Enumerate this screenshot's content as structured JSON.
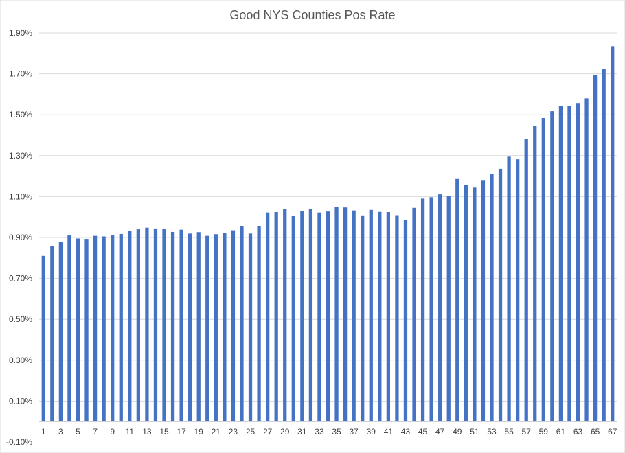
{
  "chart_data": {
    "type": "bar",
    "title": "Good NYS Counties Pos Rate",
    "xlabel": "",
    "ylabel": "",
    "ylim": [
      -0.1,
      1.9
    ],
    "y_ticks": [
      -0.1,
      0.1,
      0.3,
      0.5,
      0.7,
      0.9,
      1.1,
      1.3,
      1.5,
      1.7,
      1.9
    ],
    "y_tick_labels": [
      "-0.10%",
      "0.10%",
      "0.30%",
      "0.50%",
      "0.70%",
      "0.90%",
      "1.10%",
      "1.30%",
      "1.50%",
      "1.70%",
      "1.90%"
    ],
    "baseline": 0,
    "x_tick_labels": [
      "1",
      "3",
      "5",
      "7",
      "9",
      "11",
      "13",
      "15",
      "17",
      "19",
      "21",
      "23",
      "25",
      "27",
      "29",
      "31",
      "33",
      "35",
      "37",
      "39",
      "41",
      "43",
      "45",
      "47",
      "49",
      "51",
      "53",
      "55",
      "57",
      "59",
      "61",
      "63",
      "65",
      "67"
    ],
    "categories": [
      "1",
      "2",
      "3",
      "4",
      "5",
      "6",
      "7",
      "8",
      "9",
      "10",
      "11",
      "12",
      "13",
      "14",
      "15",
      "16",
      "17",
      "18",
      "19",
      "20",
      "21",
      "22",
      "23",
      "24",
      "25",
      "26",
      "27",
      "28",
      "29",
      "30",
      "31",
      "32",
      "33",
      "34",
      "35",
      "36",
      "37",
      "38",
      "39",
      "40",
      "41",
      "42",
      "43",
      "44",
      "45",
      "46",
      "47",
      "48",
      "49",
      "50",
      "51",
      "52",
      "53",
      "54",
      "55",
      "56",
      "57",
      "58",
      "59",
      "60",
      "61",
      "62",
      "63",
      "64",
      "65",
      "66",
      "67"
    ],
    "series": [
      {
        "name": "Pos Rate",
        "color": "#4472c4",
        "values": [
          0.81,
          0.858,
          0.878,
          0.91,
          0.895,
          0.893,
          0.908,
          0.905,
          0.91,
          0.917,
          0.933,
          0.94,
          0.948,
          0.944,
          0.943,
          0.927,
          0.938,
          0.919,
          0.926,
          0.908,
          0.916,
          0.921,
          0.935,
          0.957,
          0.919,
          0.957,
          1.022,
          1.024,
          1.04,
          1.004,
          1.031,
          1.038,
          1.022,
          1.027,
          1.05,
          1.047,
          1.032,
          1.008,
          1.035,
          1.025,
          1.024,
          1.009,
          0.984,
          1.045,
          1.09,
          1.097,
          1.111,
          1.104,
          1.186,
          1.155,
          1.144,
          1.181,
          1.21,
          1.236,
          1.295,
          1.282,
          1.383,
          1.447,
          1.484,
          1.517,
          1.543,
          1.543,
          1.557,
          1.58,
          1.694,
          1.723,
          1.835
        ]
      }
    ]
  }
}
